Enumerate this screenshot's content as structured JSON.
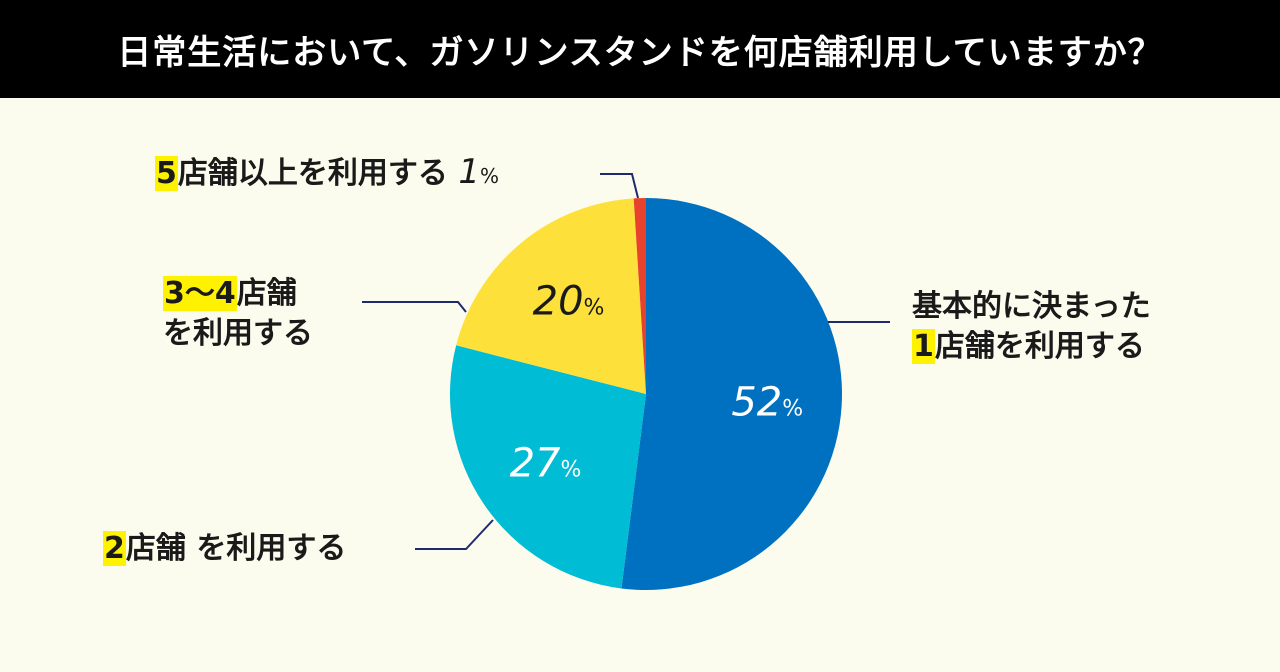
{
  "title": "日常生活において、ガソリンスタンドを何店舗利用していますか？",
  "labels": {
    "one": {
      "line1": "基本的に決まった",
      "num": "1",
      "rest": "店舗を利用する"
    },
    "two": {
      "num": "2",
      "rest": "店舗 を利用する"
    },
    "three": {
      "num": "3～4",
      "rest": "店舗",
      "line2": "を利用する"
    },
    "five": {
      "num": "5",
      "rest": "店舗以上を利用する",
      "pct": "1",
      "unit": "%"
    }
  },
  "chart_data": {
    "type": "pie",
    "title": "日常生活において、ガソリンスタンドを何店舗利用していますか？",
    "categories": [
      "基本的に決まった1店舗を利用する",
      "2店舗 を利用する",
      "3～4店舗を利用する",
      "5店舗以上を利用する"
    ],
    "values": [
      52,
      27,
      20,
      1
    ],
    "unit": "%",
    "colors": [
      "#0070C0",
      "#00BCD4",
      "#FDE13A",
      "#E8412C"
    ],
    "value_labels": [
      {
        "value": "52",
        "unit": "%",
        "color": "#FFFFFF"
      },
      {
        "value": "27",
        "unit": "%",
        "color": "#FFFFFF"
      },
      {
        "value": "20",
        "unit": "%",
        "color": "#1a1a1a"
      }
    ]
  }
}
